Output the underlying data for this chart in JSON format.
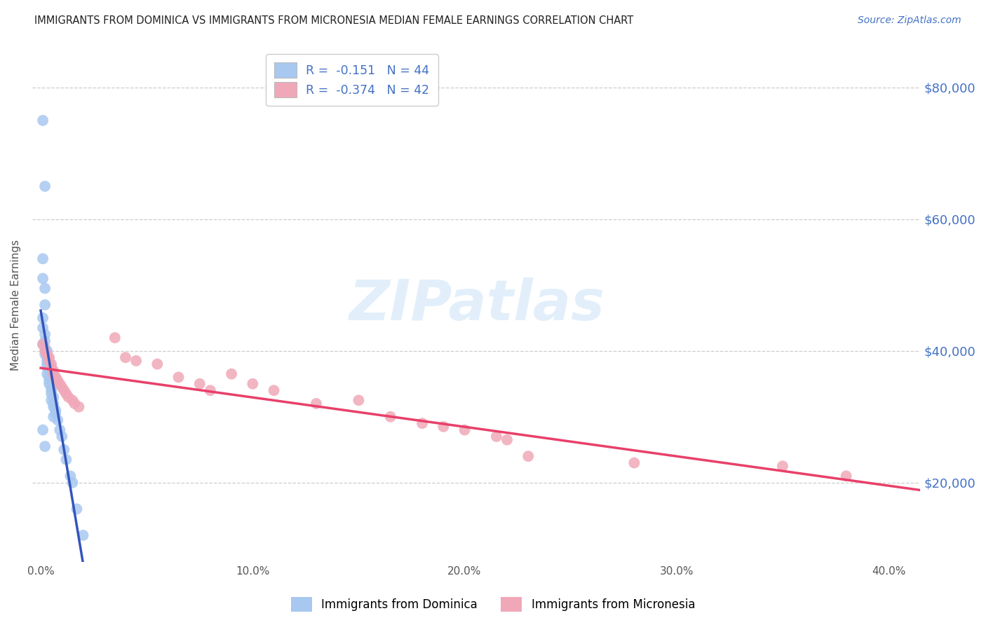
{
  "title": "IMMIGRANTS FROM DOMINICA VS IMMIGRANTS FROM MICRONESIA MEDIAN FEMALE EARNINGS CORRELATION CHART",
  "source": "Source: ZipAtlas.com",
  "ylabel": "Median Female Earnings",
  "xlabel_ticks": [
    "0.0%",
    "10.0%",
    "20.0%",
    "30.0%",
    "40.0%"
  ],
  "xlabel_vals": [
    0.0,
    0.1,
    0.2,
    0.3,
    0.4
  ],
  "ylabel_ticks": [
    "$20,000",
    "$40,000",
    "$60,000",
    "$80,000"
  ],
  "ylabel_vals": [
    20000,
    40000,
    60000,
    80000
  ],
  "xlim": [
    -0.004,
    0.415
  ],
  "ylim": [
    8000,
    86000
  ],
  "legend_r1": "R =  -0.151   N = 44",
  "legend_r2": "R =  -0.374   N = 42",
  "legend_label1": "Immigrants from Dominica",
  "legend_label2": "Immigrants from Micronesia",
  "color_blue": "#a8c8f0",
  "color_pink": "#f0a8b8",
  "color_blue_line": "#3355bb",
  "color_pink_line": "#e8406a",
  "color_blue_dark": "#4472c4",
  "watermark": "ZIPatlas",
  "background_color": "#ffffff",
  "grid_color": "#c8c8c8",
  "dominica_x": [
    0.001,
    0.002,
    0.001,
    0.001,
    0.002,
    0.002,
    0.001,
    0.001,
    0.002,
    0.002,
    0.001,
    0.002,
    0.003,
    0.002,
    0.003,
    0.003,
    0.003,
    0.003,
    0.004,
    0.003,
    0.004,
    0.004,
    0.004,
    0.005,
    0.005,
    0.005,
    0.006,
    0.005,
    0.006,
    0.006,
    0.007,
    0.007,
    0.006,
    0.008,
    0.009,
    0.01,
    0.011,
    0.012,
    0.014,
    0.015,
    0.001,
    0.002,
    0.017,
    0.02
  ],
  "dominica_y": [
    75000,
    65000,
    54000,
    51000,
    49500,
    47000,
    45000,
    43500,
    42500,
    41500,
    41000,
    40500,
    40000,
    39500,
    39000,
    38500,
    38000,
    37500,
    37000,
    36500,
    36000,
    35500,
    35000,
    34500,
    34000,
    33500,
    33000,
    32500,
    32000,
    31500,
    31000,
    30500,
    30000,
    29500,
    28000,
    27000,
    25000,
    23500,
    21000,
    20000,
    28000,
    25500,
    16000,
    12000
  ],
  "micronesia_x": [
    0.001,
    0.002,
    0.003,
    0.004,
    0.004,
    0.005,
    0.005,
    0.006,
    0.006,
    0.007,
    0.007,
    0.008,
    0.009,
    0.01,
    0.011,
    0.012,
    0.013,
    0.015,
    0.016,
    0.018,
    0.035,
    0.04,
    0.045,
    0.055,
    0.065,
    0.075,
    0.08,
    0.09,
    0.1,
    0.11,
    0.13,
    0.15,
    0.165,
    0.18,
    0.19,
    0.2,
    0.215,
    0.22,
    0.23,
    0.28,
    0.35,
    0.38
  ],
  "micronesia_y": [
    41000,
    40000,
    39500,
    39000,
    38500,
    38000,
    37500,
    37000,
    36500,
    36000,
    36000,
    35500,
    35000,
    34500,
    34000,
    33500,
    33000,
    32500,
    32000,
    31500,
    42000,
    39000,
    38500,
    38000,
    36000,
    35000,
    34000,
    36500,
    35000,
    34000,
    32000,
    32500,
    30000,
    29000,
    28500,
    28000,
    27000,
    26500,
    24000,
    23000,
    22500,
    21000
  ]
}
